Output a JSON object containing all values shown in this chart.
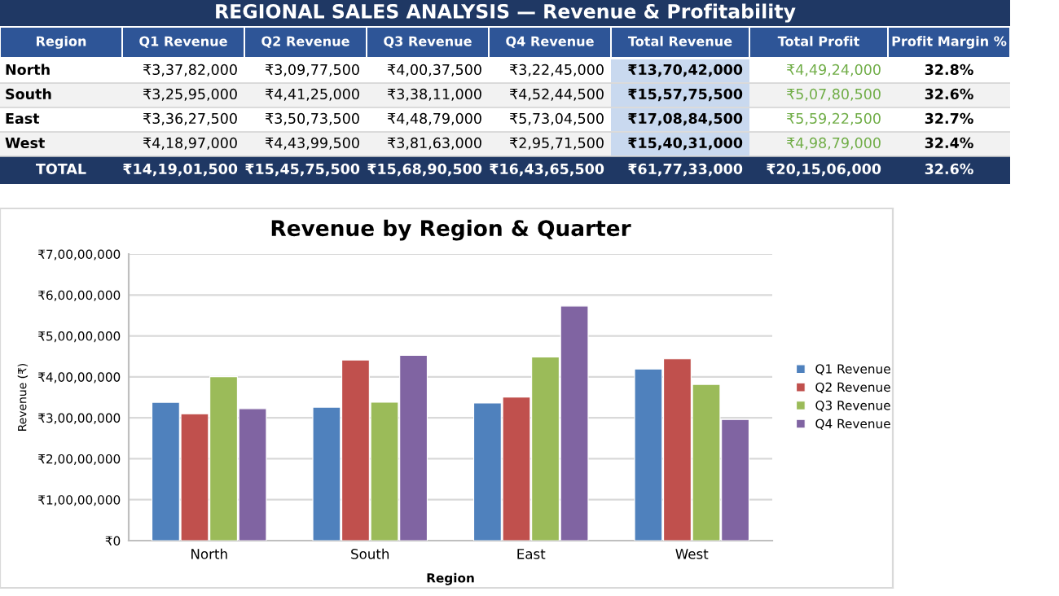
{
  "chart_data": [
    {
      "type": "other",
      "title": "REGIONAL SALES ANALYSIS — Revenue & Profitability",
      "categories": [
        "Region",
        "Q1 Revenue",
        "Q2 Revenue",
        "Q3 Revenue",
        "Q4 Revenue",
        "Total Revenue",
        "Total Profit",
        "Profit Margin %"
      ],
      "cell_labels": [
        [
          "North",
          "₹3,37,82,000",
          "₹3,09,77,500",
          "₹4,00,37,500",
          "₹3,22,45,000",
          "₹13,70,42,000",
          "₹4,49,24,000",
          "32.8%"
        ],
        [
          "South",
          "₹3,25,95,000",
          "₹4,41,25,000",
          "₹3,38,11,000",
          "₹4,52,44,500",
          "₹15,57,75,500",
          "₹5,07,80,500",
          "32.6%"
        ],
        [
          "East",
          "₹3,36,27,500",
          "₹3,50,73,500",
          "₹4,48,79,000",
          "₹5,73,04,500",
          "₹17,08,84,500",
          "₹5,59,22,500",
          "32.7%"
        ],
        [
          "West",
          "₹4,18,97,000",
          "₹4,43,99,500",
          "₹3,81,63,000",
          "₹2,95,71,500",
          "₹15,40,31,000",
          "₹4,98,79,000",
          "32.4%"
        ],
        [
          "TOTAL",
          "₹14,19,01,500",
          "₹15,45,75,500",
          "₹15,68,90,500",
          "₹16,43,65,500",
          "₹61,77,33,000",
          "₹20,15,06,000",
          "32.6%"
        ]
      ]
    },
    {
      "type": "bar",
      "title": "Revenue by Region & Quarter",
      "xlabel": "Region",
      "ylabel": "Revenue (₹)",
      "categories": [
        "North",
        "South",
        "East",
        "West"
      ],
      "series": [
        {
          "name": "Q1 Revenue",
          "color": "#4f81bd",
          "values": [
            33782000,
            32595000,
            33627500,
            41897000
          ]
        },
        {
          "name": "Q2 Revenue",
          "color": "#c0504d",
          "values": [
            30977500,
            44125000,
            35073500,
            44399500
          ]
        },
        {
          "name": "Q3 Revenue",
          "color": "#9bbb59",
          "values": [
            40037500,
            33811000,
            44879000,
            38163000
          ]
        },
        {
          "name": "Q4 Revenue",
          "color": "#8064a2",
          "values": [
            32245000,
            45244500,
            57304500,
            29571500
          ]
        }
      ],
      "ylim": [
        0,
        70000000
      ],
      "yticks": [
        {
          "value": 0,
          "label": "₹0"
        },
        {
          "value": 10000000,
          "label": "₹1,00,00,000"
        },
        {
          "value": 20000000,
          "label": "₹2,00,00,000"
        },
        {
          "value": 30000000,
          "label": "₹3,00,00,000"
        },
        {
          "value": 40000000,
          "label": "₹4,00,00,000"
        },
        {
          "value": 50000000,
          "label": "₹5,00,00,000"
        },
        {
          "value": 60000000,
          "label": "₹6,00,00,000"
        },
        {
          "value": 70000000,
          "label": "₹7,00,00,000"
        }
      ],
      "grid": "y",
      "legend": "right"
    }
  ]
}
